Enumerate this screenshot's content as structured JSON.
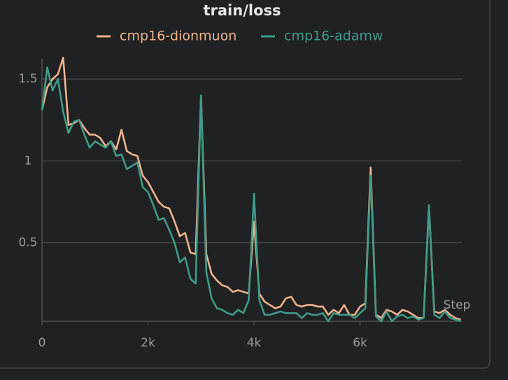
{
  "chart_data": {
    "type": "line",
    "title": "train/loss",
    "x_label": "Step",
    "x": [
      0,
      100,
      200,
      300,
      400,
      500,
      600,
      700,
      800,
      900,
      1000,
      1100,
      1200,
      1300,
      1400,
      1500,
      1600,
      1700,
      1800,
      1900,
      2000,
      2100,
      2200,
      2300,
      2400,
      2500,
      2600,
      2700,
      2800,
      2900,
      3000,
      3100,
      3200,
      3300,
      3400,
      3500,
      3600,
      3700,
      3800,
      3900,
      4000,
      4100,
      4200,
      4300,
      4400,
      4500,
      4600,
      4700,
      4800,
      4900,
      5000,
      5100,
      5200,
      5300,
      5400,
      5500,
      5600,
      5700,
      5800,
      5900,
      6000,
      6100,
      6200,
      6300,
      6400,
      6500,
      6600,
      6700,
      6800,
      6900,
      7000,
      7100,
      7200,
      7300,
      7400,
      7500,
      7600,
      7700,
      7800,
      7900
    ],
    "series": [
      {
        "name": "cmp16-dionmuon",
        "color": "#f0b48e",
        "values": [
          1.31,
          1.45,
          1.5,
          1.53,
          1.63,
          1.22,
          1.23,
          1.25,
          1.2,
          1.16,
          1.16,
          1.14,
          1.09,
          1.12,
          1.07,
          1.19,
          1.06,
          1.04,
          1.03,
          0.91,
          0.87,
          0.81,
          0.75,
          0.72,
          0.71,
          0.63,
          0.54,
          0.56,
          0.44,
          0.43,
          1.39,
          0.43,
          0.31,
          0.27,
          0.24,
          0.23,
          0.2,
          0.21,
          0.2,
          0.19,
          0.63,
          0.19,
          0.14,
          0.12,
          0.1,
          0.11,
          0.16,
          0.17,
          0.12,
          0.11,
          0.12,
          0.12,
          0.11,
          0.11,
          0.06,
          0.09,
          0.07,
          0.12,
          0.06,
          0.06,
          0.11,
          0.13,
          0.96,
          0.06,
          0.04,
          0.09,
          0.08,
          0.06,
          0.09,
          0.08,
          0.06,
          0.04,
          0.04,
          0.72,
          0.08,
          0.07,
          0.09,
          0.06,
          0.04,
          0.03
        ]
      },
      {
        "name": "cmp16-adamw",
        "color": "#3e9b8a",
        "values": [
          1.31,
          1.57,
          1.43,
          1.5,
          1.3,
          1.17,
          1.24,
          1.25,
          1.16,
          1.08,
          1.12,
          1.1,
          1.08,
          1.12,
          1.03,
          1.04,
          0.95,
          0.97,
          0.99,
          0.84,
          0.81,
          0.73,
          0.64,
          0.65,
          0.58,
          0.5,
          0.38,
          0.41,
          0.28,
          0.25,
          1.4,
          0.32,
          0.16,
          0.1,
          0.09,
          0.07,
          0.06,
          0.09,
          0.07,
          0.15,
          0.8,
          0.15,
          0.06,
          0.06,
          0.07,
          0.08,
          0.07,
          0.07,
          0.07,
          0.04,
          0.07,
          0.06,
          0.06,
          0.07,
          0.02,
          0.07,
          0.06,
          0.06,
          0.06,
          0.04,
          0.07,
          0.1,
          0.91,
          0.05,
          0.02,
          0.08,
          0.02,
          0.05,
          0.06,
          0.04,
          0.05,
          0.03,
          0.04,
          0.73,
          0.06,
          0.04,
          0.08,
          0.04,
          0.03,
          0.02
        ]
      }
    ],
    "xlim": [
      0,
      7920
    ],
    "xticks": [
      0,
      {
        "value": 2000,
        "label": "2k"
      },
      {
        "value": 4000,
        "label": "4k"
      },
      {
        "value": 6000,
        "label": "6k"
      }
    ],
    "ylim": [
      0.02,
      1.62
    ],
    "yticks": [
      0.5,
      1,
      1.5
    ],
    "grid": true
  }
}
